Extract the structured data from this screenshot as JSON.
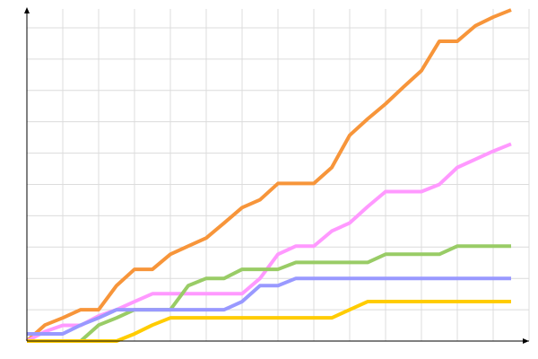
{
  "chart_data": {
    "type": "line",
    "x": [
      0,
      1,
      2,
      3,
      4,
      5,
      6,
      7,
      8,
      9,
      10,
      11,
      12,
      13,
      14,
      15,
      16,
      17,
      18,
      19,
      20,
      21,
      22,
      23,
      24,
      25,
      26,
      27
    ],
    "series": [
      {
        "color": "#f7953a",
        "values": [
          0,
          5.1,
          7.4,
          10,
          10,
          17.7,
          22.9,
          22.9,
          27.7,
          30.3,
          32.9,
          37.7,
          42.6,
          45.1,
          50.3,
          50.3,
          50.3,
          55.4,
          65.7,
          70.9,
          75.7,
          81.1,
          86.3,
          95.7,
          95.7,
          100.6,
          103.4,
          105.7
        ]
      },
      {
        "color": "#ff99ff",
        "values": [
          0,
          3,
          5,
          5,
          8,
          10,
          12.6,
          15.1,
          15.1,
          15.1,
          15.1,
          15.1,
          15.1,
          20,
          27.7,
          30.3,
          30.3,
          35.1,
          37.7,
          42.9,
          47.7,
          47.7,
          47.7,
          50,
          55.4,
          58,
          60.6,
          62.9
        ]
      },
      {
        "color": "#99cc66",
        "values": [
          0,
          0,
          0,
          0,
          5.1,
          7.4,
          10,
          10,
          10,
          17.7,
          20,
          20,
          22.9,
          22.9,
          22.9,
          25.1,
          25.1,
          25.1,
          25.1,
          25.1,
          27.7,
          27.7,
          27.7,
          27.7,
          30.3,
          30.3,
          30.3,
          30.3
        ]
      },
      {
        "color": "#9999ff",
        "values": [
          2.3,
          2.3,
          2.3,
          5.1,
          7.4,
          10,
          10,
          10,
          10,
          10,
          10,
          10,
          12.6,
          17.7,
          17.7,
          20,
          20,
          20,
          20,
          20,
          20,
          20,
          20,
          20,
          20,
          20,
          20,
          20
        ]
      },
      {
        "color": "#ffcc00",
        "values": [
          0,
          0,
          0,
          0,
          0,
          0,
          2.3,
          5.1,
          7.4,
          7.4,
          7.4,
          7.4,
          7.4,
          7.4,
          7.4,
          7.4,
          7.4,
          7.4,
          10,
          12.6,
          12.6,
          12.6,
          12.6,
          12.6,
          12.6,
          12.6,
          12.6,
          12.6
        ]
      }
    ],
    "xlim": [
      0,
      28
    ],
    "xticks": [
      0,
      2,
      4,
      6,
      8,
      10,
      12,
      14,
      16,
      18,
      20,
      22,
      24,
      26,
      28
    ],
    "ylim": [
      0,
      106
    ],
    "yticks": [
      0,
      10,
      20,
      30,
      40,
      50,
      60,
      70,
      80,
      90,
      100
    ],
    "grid": true
  }
}
